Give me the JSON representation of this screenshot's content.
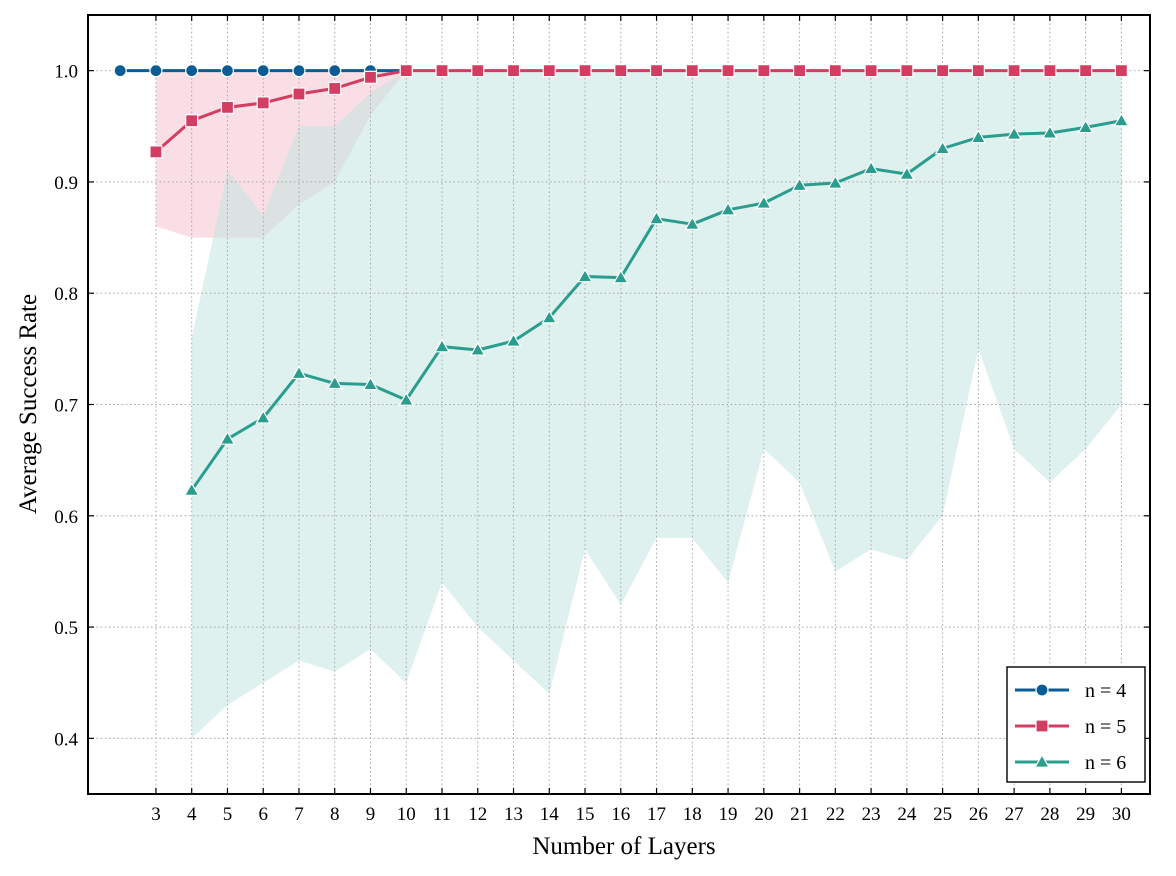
{
  "chart_data": {
    "type": "line",
    "title": "",
    "xlabel": "Number of Layers",
    "ylabel": "Average Success Rate",
    "xlim": [
      1.1,
      30.8
    ],
    "ylim": [
      0.35,
      1.05
    ],
    "xticks": [
      3,
      4,
      5,
      6,
      7,
      8,
      9,
      10,
      11,
      12,
      13,
      14,
      15,
      16,
      17,
      18,
      19,
      20,
      21,
      22,
      23,
      24,
      25,
      26,
      27,
      28,
      29,
      30
    ],
    "yticks": [
      0.4,
      0.5,
      0.6,
      0.7,
      0.8,
      0.9,
      1.0
    ],
    "ytick_labels": [
      "0.4",
      "0.5",
      "0.6",
      "0.7",
      "0.8",
      "0.9",
      "1.0"
    ],
    "grid": true,
    "legend_position": "bottom-right",
    "series": [
      {
        "name": "n = 4",
        "color": "#0a5c94",
        "marker": "circle",
        "x": [
          2,
          3,
          4,
          5,
          6,
          7,
          8,
          9,
          10
        ],
        "values": [
          1.0,
          1.0,
          1.0,
          1.0,
          1.0,
          1.0,
          1.0,
          1.0,
          1.0
        ],
        "band_low": [],
        "band_high": []
      },
      {
        "name": "n = 5",
        "color": "#d23e62",
        "band_color": "#f2b6c6",
        "marker": "square",
        "x": [
          3,
          4,
          5,
          6,
          7,
          8,
          9,
          10,
          11,
          12,
          13,
          14,
          15,
          16,
          17,
          18,
          19,
          20,
          21,
          22,
          23,
          24,
          25,
          26,
          27,
          28,
          29,
          30
        ],
        "values": [
          0.927,
          0.955,
          0.967,
          0.971,
          0.979,
          0.984,
          0.994,
          1.0,
          1.0,
          1.0,
          1.0,
          1.0,
          1.0,
          1.0,
          1.0,
          1.0,
          1.0,
          1.0,
          1.0,
          1.0,
          1.0,
          1.0,
          1.0,
          1.0,
          1.0,
          1.0,
          1.0,
          1.0
        ],
        "band_low": [
          0.86,
          0.85,
          0.85,
          0.85,
          0.88,
          0.9,
          0.96,
          1.0,
          1.0,
          1.0,
          1.0,
          1.0,
          1.0,
          1.0,
          1.0,
          1.0,
          1.0,
          1.0,
          1.0,
          1.0,
          1.0,
          1.0,
          1.0,
          1.0,
          1.0,
          1.0,
          1.0,
          1.0
        ],
        "band_high": [
          1.0,
          1.0,
          1.0,
          1.0,
          1.0,
          1.0,
          1.0,
          1.0,
          1.0,
          1.0,
          1.0,
          1.0,
          1.0,
          1.0,
          1.0,
          1.0,
          1.0,
          1.0,
          1.0,
          1.0,
          1.0,
          1.0,
          1.0,
          1.0,
          1.0,
          1.0,
          1.0,
          1.0
        ]
      },
      {
        "name": "n = 6",
        "color": "#2a9d8f",
        "band_color": "#bfe3de",
        "marker": "triangle",
        "x": [
          4,
          5,
          6,
          7,
          8,
          9,
          10,
          11,
          12,
          13,
          14,
          15,
          16,
          17,
          18,
          19,
          20,
          21,
          22,
          23,
          24,
          25,
          26,
          27,
          28,
          29,
          30
        ],
        "values": [
          0.623,
          0.669,
          0.688,
          0.728,
          0.719,
          0.718,
          0.704,
          0.752,
          0.749,
          0.757,
          0.778,
          0.815,
          0.814,
          0.867,
          0.862,
          0.875,
          0.881,
          0.897,
          0.899,
          0.912,
          0.907,
          0.93,
          0.94,
          0.943,
          0.944,
          0.949,
          0.955
        ],
        "band_low": [
          0.4,
          0.43,
          0.45,
          0.47,
          0.46,
          0.48,
          0.45,
          0.54,
          0.5,
          0.47,
          0.44,
          0.57,
          0.52,
          0.58,
          0.58,
          0.54,
          0.66,
          0.63,
          0.55,
          0.57,
          0.56,
          0.6,
          0.75,
          0.66,
          0.63,
          0.66,
          0.7
        ],
        "band_high": [
          0.76,
          0.91,
          0.87,
          0.95,
          0.95,
          0.98,
          1.0,
          1.0,
          1.0,
          1.0,
          1.0,
          1.0,
          1.0,
          1.0,
          1.0,
          1.0,
          1.0,
          1.0,
          1.0,
          1.0,
          1.0,
          1.0,
          1.0,
          1.0,
          1.0,
          1.0,
          1.0
        ]
      }
    ]
  }
}
